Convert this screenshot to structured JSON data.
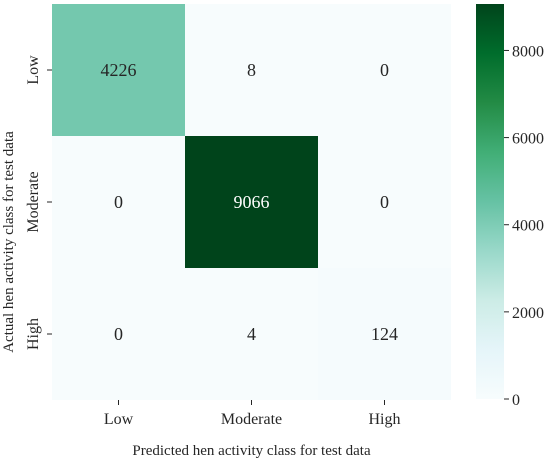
{
  "chart_data": {
    "type": "heatmap",
    "title": "",
    "xlabel": "Predicted hen activity class for test data",
    "ylabel": "Actual hen activity class for test data",
    "x_categories": [
      "Low",
      "Moderate",
      "High"
    ],
    "y_categories": [
      "Low",
      "Moderate",
      "High"
    ],
    "matrix": [
      [
        4226,
        8,
        0
      ],
      [
        0,
        9066,
        0
      ],
      [
        0,
        4,
        124
      ]
    ],
    "colorbar": {
      "min": 0,
      "max": 9066,
      "ticks": [
        0,
        2000,
        4000,
        6000,
        8000
      ]
    },
    "colormap": [
      "#f7fcfd",
      "#e5f5f9",
      "#ccece6",
      "#99d8c9",
      "#66c2a4",
      "#41ae76",
      "#238b45",
      "#006d2c",
      "#00441b"
    ],
    "text_color_light": "#ffffff",
    "text_color_dark": "#262626"
  }
}
